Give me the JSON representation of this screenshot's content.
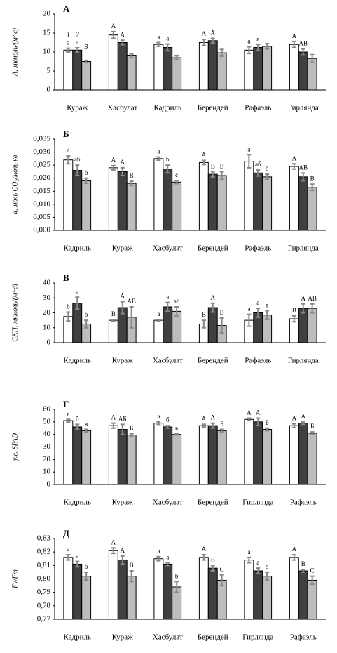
{
  "chart_data": [
    {
      "type": "bar",
      "panel": "А",
      "ylabel": "A, мкмоль/(м²·с)",
      "categories": [
        "Кураж",
        "Хасбулат",
        "Кадриль",
        "Берендей",
        "Рафаэль",
        "Гирлянда"
      ],
      "ylim": [
        0,
        20
      ],
      "yticks": [
        0,
        5,
        10,
        15,
        20
      ],
      "series": [
        {
          "name": "1",
          "color": "#ffffff",
          "values": [
            10.5,
            14.5,
            12,
            12.5,
            10.5,
            12
          ],
          "errors": [
            0.5,
            0.9,
            0.5,
            0.8,
            0.9,
            0.8
          ],
          "letters": [
            "a",
            "A",
            "a",
            "A",
            "a",
            "A"
          ]
        },
        {
          "name": "2",
          "color": "#404040",
          "values": [
            10.5,
            12.5,
            11.2,
            13,
            11.2,
            10
          ],
          "errors": [
            0.6,
            0.6,
            0.9,
            0.6,
            0.8,
            0.8
          ],
          "letters": [
            "a",
            "A",
            "a",
            "A",
            "a",
            "AB"
          ]
        },
        {
          "name": "3",
          "color": "#bdbdbd",
          "values": [
            7.5,
            9,
            8.5,
            9.8,
            11.5,
            8.3
          ],
          "errors": [
            0.3,
            0.5,
            0.5,
            0.9,
            0.7,
            1
          ]
        }
      ]
    },
    {
      "type": "bar",
      "panel": "Б",
      "ylabel": "α, моль CO₂/моль кв",
      "categories": [
        "Кадриль",
        "Кураж",
        "Хасбулат",
        "Берендей",
        "Рафаэль",
        "Гирлянда"
      ],
      "ylim": [
        0,
        0.035
      ],
      "yticks": [
        {
          "value": 0,
          "label": "0,000"
        },
        {
          "value": 0.005,
          "label": "0,005"
        },
        {
          "value": 0.01,
          "label": "0,010"
        },
        {
          "value": 0.015,
          "label": "0,015"
        },
        {
          "value": 0.02,
          "label": "0,020"
        },
        {
          "value": 0.025,
          "label": "0,025"
        },
        {
          "value": 0.03,
          "label": "0,030"
        },
        {
          "value": 0.035,
          "label": "0,035"
        }
      ],
      "series": [
        {
          "color": "#ffffff",
          "values": [
            0.027,
            0.024,
            0.0275,
            0.026,
            0.0265,
            0.0245
          ],
          "errors": [
            0.0015,
            0.0008,
            0.0006,
            0.0008,
            0.0025,
            0.001
          ],
          "letters": [
            "a",
            "A",
            "a",
            "A",
            "a",
            "A"
          ]
        },
        {
          "color": "#404040",
          "values": [
            0.023,
            0.0225,
            0.0235,
            0.0215,
            0.022,
            0.0205
          ],
          "errors": [
            0.002,
            0.0015,
            0.0015,
            0.001,
            0.0012,
            0.0015
          ],
          "letters": [
            "ab",
            "A",
            "b",
            "B",
            "аб",
            "AB"
          ]
        },
        {
          "color": "#bdbdbd",
          "values": [
            0.019,
            0.018,
            0.0185,
            0.021,
            0.0205,
            0.0165
          ],
          "errors": [
            0.001,
            0.0008,
            0.0006,
            0.0015,
            0.001,
            0.0012
          ],
          "letters": [
            "b",
            "B",
            "c",
            "B",
            "б",
            "B"
          ]
        }
      ]
    },
    {
      "type": "bar",
      "panel": "В",
      "ylabel": "СКП, мкмоль/(м²·с)",
      "categories": [
        "Кадриль",
        "Кураж",
        "Хасбулат",
        "Берендей",
        "Рафаэль",
        "Гирлянда"
      ],
      "ylim": [
        0,
        40
      ],
      "yticks": [
        0,
        10,
        20,
        30,
        40
      ],
      "series": [
        {
          "color": "#ffffff",
          "values": [
            17.5,
            15,
            15,
            12.5,
            15,
            16
          ],
          "errors": [
            3,
            0.5,
            0.5,
            2.5,
            4,
            2
          ],
          "letters": [
            "b",
            "B",
            "a",
            "B",
            "a",
            "B"
          ]
        },
        {
          "color": "#404040",
          "values": [
            26.5,
            23.5,
            24,
            23.5,
            20,
            23
          ],
          "errors": [
            4,
            4,
            3,
            3,
            3,
            3
          ],
          "letters": [
            "a",
            "A",
            "a",
            "A",
            "a",
            "A"
          ]
        },
        {
          "color": "#bdbdbd",
          "values": [
            12.5,
            17,
            21,
            11.5,
            18.5,
            23
          ],
          "errors": [
            2.5,
            7,
            3,
            5,
            3,
            3
          ],
          "letters": [
            "b",
            "AB",
            "ab",
            "B",
            "a",
            "AB"
          ]
        }
      ]
    },
    {
      "type": "bar",
      "panel": "Г",
      "ylabel": "у.е. SPAD",
      "categories": [
        "Кадриль",
        "Кураж",
        "Хасбулат",
        "Берендей",
        "Гирлянда",
        "Рафаэль"
      ],
      "ylim": [
        0,
        60
      ],
      "yticks": [
        0,
        10,
        20,
        30,
        40,
        50,
        60
      ],
      "series": [
        {
          "color": "#ffffff",
          "values": [
            51,
            47,
            49,
            47,
            52,
            47
          ],
          "errors": [
            1,
            2,
            1,
            1,
            1,
            1.5
          ],
          "letters": [
            "a",
            "A",
            "a",
            "A",
            "A",
            "A"
          ]
        },
        {
          "color": "#404040",
          "values": [
            46,
            44,
            46,
            47,
            50,
            49
          ],
          "errors": [
            2,
            4,
            1,
            2,
            3,
            1
          ],
          "letters": [
            "б",
            "АБ",
            "б",
            "A",
            "A",
            "A"
          ]
        },
        {
          "color": "#bdbdbd",
          "values": [
            43,
            39.5,
            40,
            43,
            44,
            41
          ],
          "errors": [
            1,
            1,
            0.5,
            1,
            1,
            1
          ],
          "letters": [
            "в",
            "Б",
            "в",
            "Б",
            "Б",
            "Б"
          ]
        }
      ]
    },
    {
      "type": "bar",
      "panel": "Д",
      "ylabel": "Fv/Fm",
      "categories": [
        "Кадриль",
        "Кураж",
        "Хасбулат",
        "Берендей",
        "Гирлянда",
        "Рафаэль"
      ],
      "ylim": [
        0.77,
        0.83
      ],
      "yticks": [
        {
          "value": 0.77,
          "label": "0,77"
        },
        {
          "value": 0.78,
          "label": "0,78"
        },
        {
          "value": 0.79,
          "label": "0,79"
        },
        {
          "value": 0.8,
          "label": "0,80"
        },
        {
          "value": 0.81,
          "label": "0,81"
        },
        {
          "value": 0.82,
          "label": "0,82"
        },
        {
          "value": 0.83,
          "label": "0,83"
        }
      ],
      "series": [
        {
          "color": "#ffffff",
          "values": [
            0.816,
            0.821,
            0.815,
            0.816,
            0.814,
            0.816
          ],
          "errors": [
            0.002,
            0.002,
            0.0015,
            0.002,
            0.002,
            0.002
          ],
          "letters": [
            "a",
            "A",
            "a",
            "A",
            "a",
            "A"
          ]
        },
        {
          "color": "#404040",
          "values": [
            0.811,
            0.814,
            0.811,
            0.808,
            0.806,
            0.806
          ],
          "errors": [
            0.002,
            0.003,
            0.001,
            0.002,
            0.002,
            0.001
          ],
          "letters": [
            "a",
            "A",
            "a",
            "B",
            "a",
            "B"
          ]
        },
        {
          "color": "#bdbdbd",
          "values": [
            0.802,
            0.802,
            0.794,
            0.799,
            0.802,
            0.799
          ],
          "errors": [
            0.003,
            0.004,
            0.004,
            0.004,
            0.003,
            0.003
          ],
          "letters": [
            "b",
            "B",
            "b",
            "C",
            "b",
            "C"
          ]
        }
      ]
    }
  ]
}
